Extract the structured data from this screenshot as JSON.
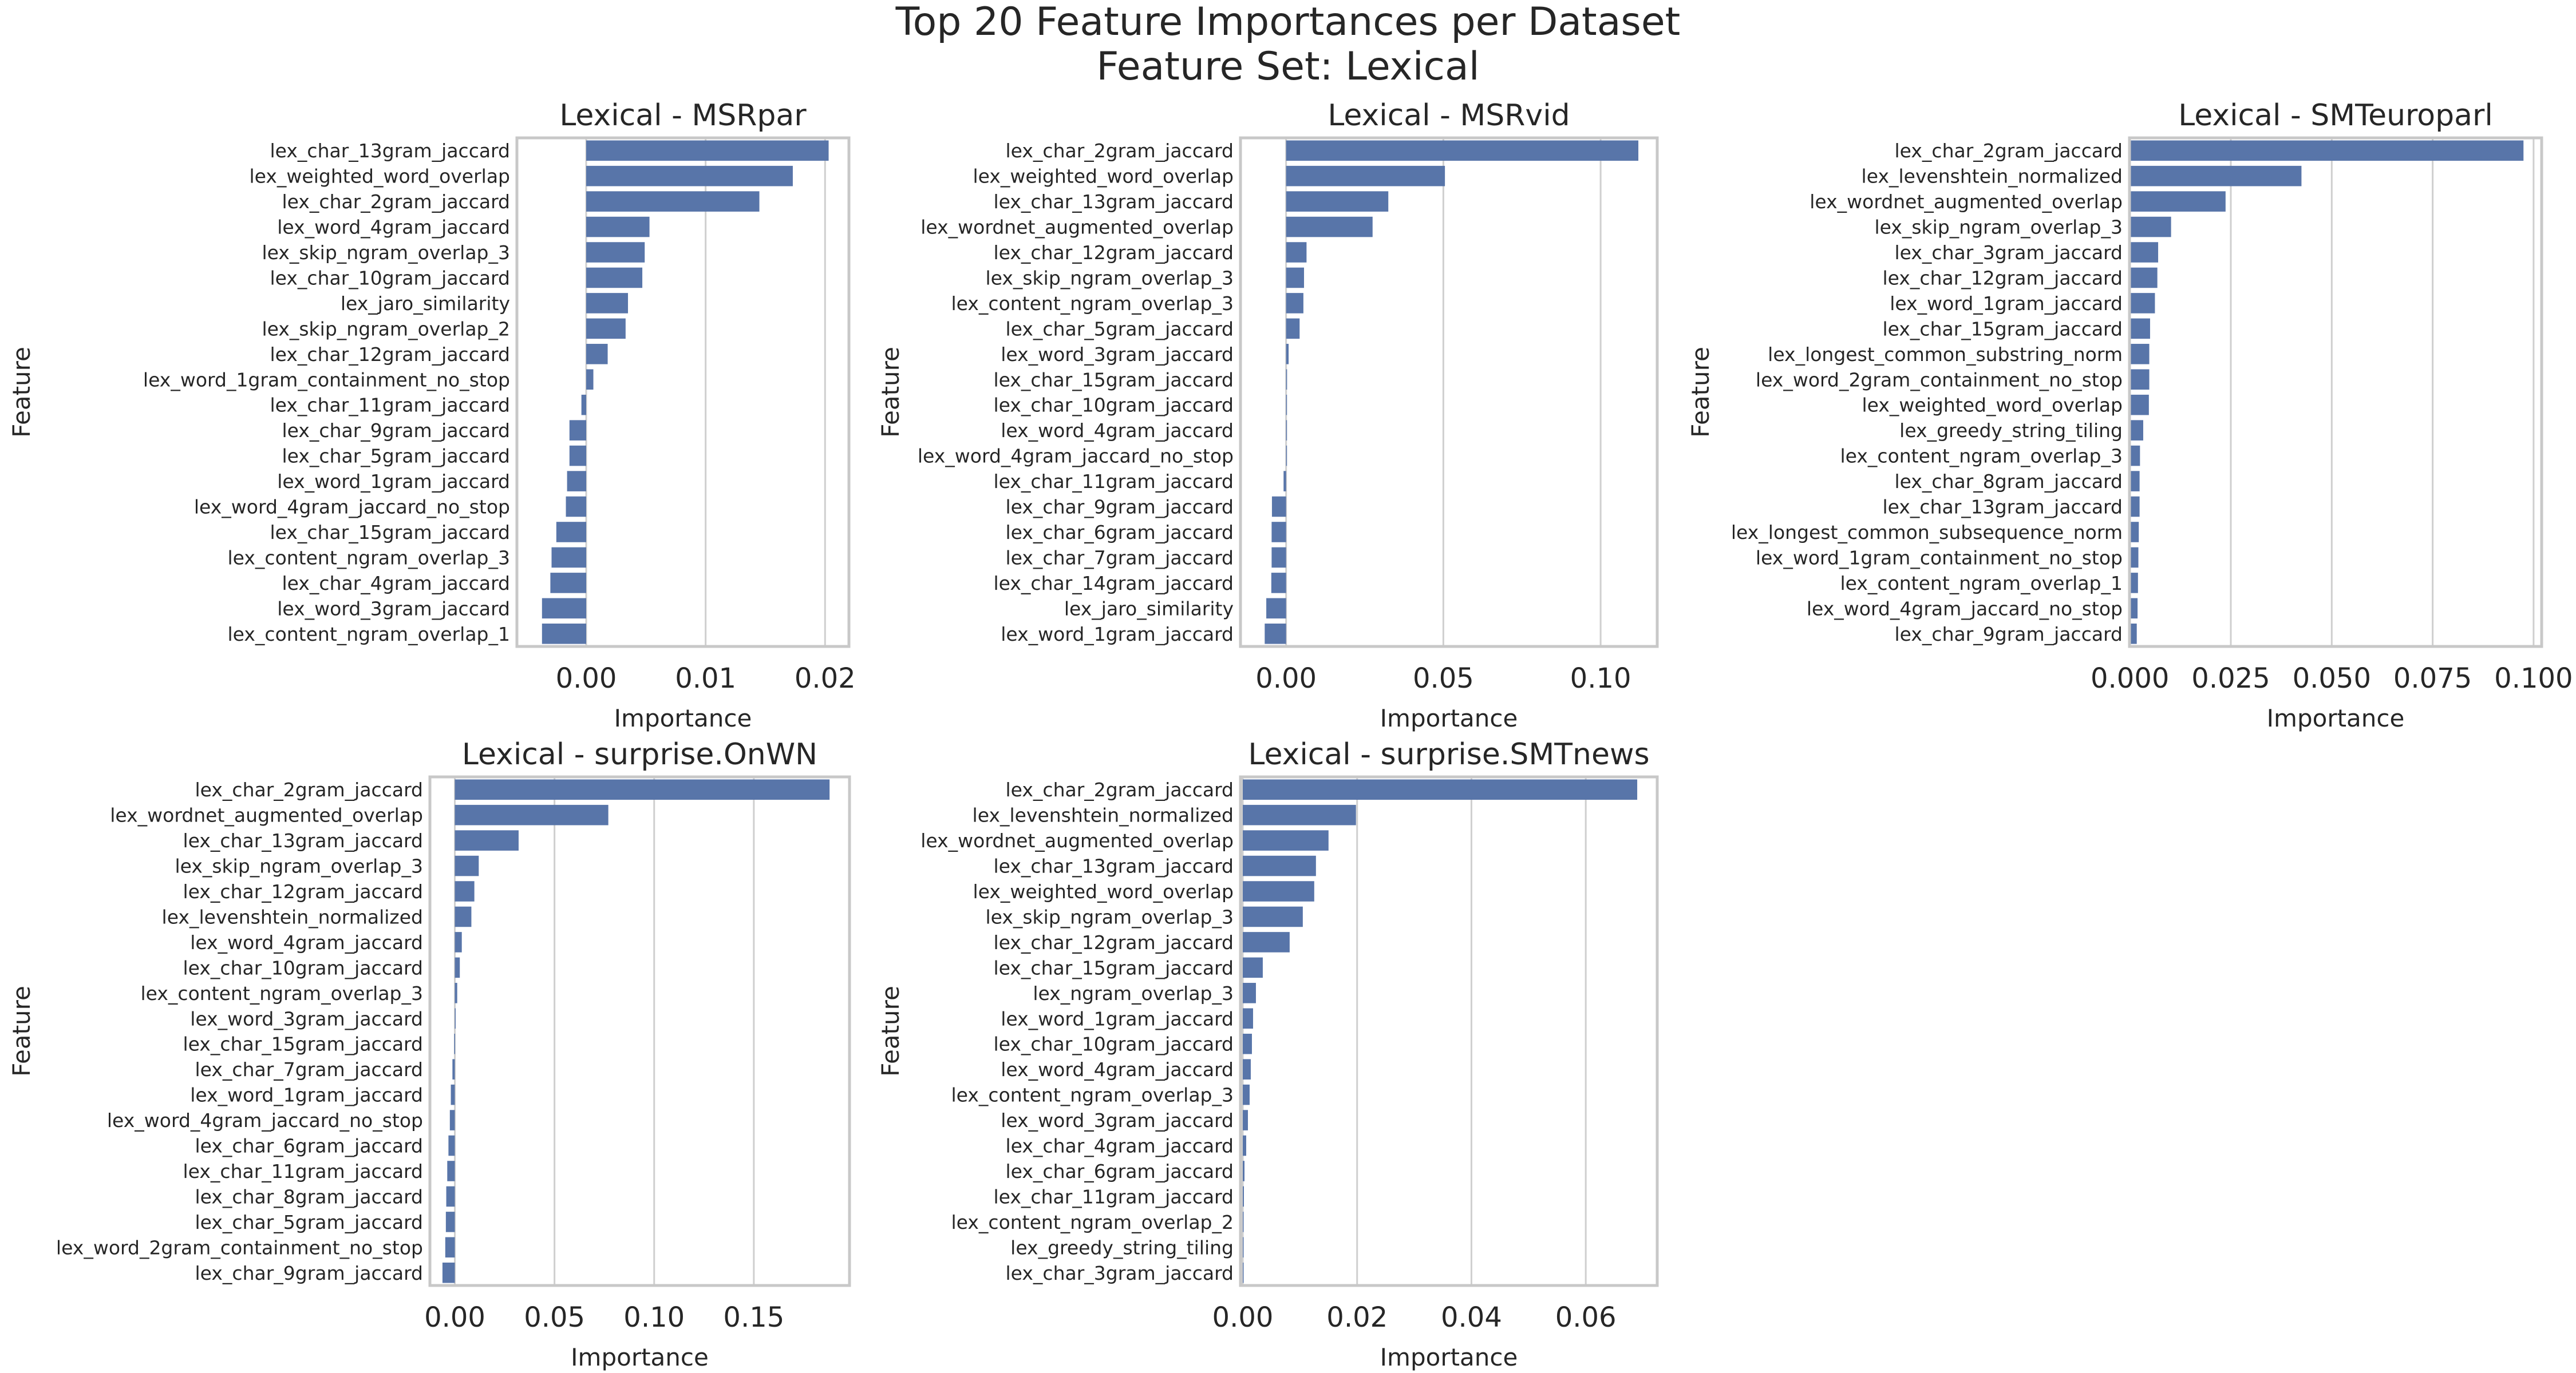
{
  "figure": {
    "title_line1": "Top 20 Feature Importances per Dataset",
    "title_line2": "Feature Set: Lexical"
  },
  "style": {
    "bar_color": "#5875a9",
    "grid_color": "#cfcfcf",
    "axis_color": "#c8c8c8",
    "background": "#ffffff"
  },
  "chart_data": [
    {
      "type": "bar",
      "orientation": "horizontal",
      "title": "Lexical - MSRpar",
      "xlabel": "Importance",
      "ylabel": "Feature",
      "xlim": [
        -0.0058,
        0.022
      ],
      "xticks": [
        0.0,
        0.01,
        0.02
      ],
      "xtick_labels": [
        "0.00",
        "0.01",
        "0.02"
      ],
      "grid": true,
      "categories": [
        "lex_char_13gram_jaccard",
        "lex_weighted_word_overlap",
        "lex_char_2gram_jaccard",
        "lex_word_4gram_jaccard",
        "lex_skip_ngram_overlap_3",
        "lex_char_10gram_jaccard",
        "lex_jaro_similarity",
        "lex_skip_ngram_overlap_2",
        "lex_char_12gram_jaccard",
        "lex_word_1gram_containment_no_stop",
        "lex_char_11gram_jaccard",
        "lex_char_9gram_jaccard",
        "lex_char_5gram_jaccard",
        "lex_word_1gram_jaccard",
        "lex_word_4gram_jaccard_no_stop",
        "lex_char_15gram_jaccard",
        "lex_content_ngram_overlap_3",
        "lex_char_4gram_jaccard",
        "lex_word_3gram_jaccard",
        "lex_content_ngram_overlap_1"
      ],
      "values": [
        0.0203,
        0.0173,
        0.0145,
        0.0053,
        0.0049,
        0.0047,
        0.0035,
        0.0033,
        0.0018,
        0.0006,
        -0.0004,
        -0.0014,
        -0.0014,
        -0.0016,
        -0.0017,
        -0.0025,
        -0.0029,
        -0.003,
        -0.0037,
        -0.0037
      ]
    },
    {
      "type": "bar",
      "orientation": "horizontal",
      "title": "Lexical - MSRvid",
      "xlabel": "Importance",
      "ylabel": "Feature",
      "xlim": [
        -0.0145,
        0.118
      ],
      "xticks": [
        0.0,
        0.05,
        0.1
      ],
      "xtick_labels": [
        "0.00",
        "0.05",
        "0.10"
      ],
      "grid": true,
      "categories": [
        "lex_char_2gram_jaccard",
        "lex_weighted_word_overlap",
        "lex_char_13gram_jaccard",
        "lex_wordnet_augmented_overlap",
        "lex_char_12gram_jaccard",
        "lex_skip_ngram_overlap_3",
        "lex_content_ngram_overlap_3",
        "lex_char_5gram_jaccard",
        "lex_word_3gram_jaccard",
        "lex_char_15gram_jaccard",
        "lex_char_10gram_jaccard",
        "lex_word_4gram_jaccard",
        "lex_word_4gram_jaccard_no_stop",
        "lex_char_11gram_jaccard",
        "lex_char_9gram_jaccard",
        "lex_char_6gram_jaccard",
        "lex_char_7gram_jaccard",
        "lex_char_14gram_jaccard",
        "lex_jaro_similarity",
        "lex_word_1gram_jaccard"
      ],
      "values": [
        0.112,
        0.0505,
        0.0325,
        0.0275,
        0.0065,
        0.0057,
        0.0055,
        0.0043,
        0.0008,
        0.0003,
        0.0002,
        0.0001,
        0.0001,
        -0.0008,
        -0.0045,
        -0.0046,
        -0.0046,
        -0.0047,
        -0.0063,
        -0.0068
      ]
    },
    {
      "type": "bar",
      "orientation": "horizontal",
      "title": "Lexical - SMTeuroparl",
      "xlabel": "Importance",
      "ylabel": "Feature",
      "xlim": [
        -0.0001,
        0.102
      ],
      "xticks": [
        0.0,
        0.025,
        0.05,
        0.075,
        0.1
      ],
      "xtick_labels": [
        "0.000",
        "0.025",
        "0.050",
        "0.075",
        "0.100"
      ],
      "grid": true,
      "categories": [
        "lex_char_2gram_jaccard",
        "lex_levenshtein_normalized",
        "lex_wordnet_augmented_overlap",
        "lex_skip_ngram_overlap_3",
        "lex_char_3gram_jaccard",
        "lex_char_12gram_jaccard",
        "lex_word_1gram_jaccard",
        "lex_char_15gram_jaccard",
        "lex_longest_common_substring_norm",
        "lex_word_2gram_containment_no_stop",
        "lex_weighted_word_overlap",
        "lex_greedy_string_tiling",
        "lex_content_ngram_overlap_3",
        "lex_char_8gram_jaccard",
        "lex_char_13gram_jaccard",
        "lex_longest_common_subsequence_norm",
        "lex_word_1gram_containment_no_stop",
        "lex_content_ngram_overlap_1",
        "lex_word_4gram_jaccard_no_stop",
        "lex_char_9gram_jaccard"
      ],
      "values": [
        0.0975,
        0.0425,
        0.0237,
        0.0102,
        0.007,
        0.0068,
        0.0062,
        0.005,
        0.0048,
        0.0048,
        0.0047,
        0.0033,
        0.0025,
        0.0024,
        0.0024,
        0.0022,
        0.0021,
        0.002,
        0.0019,
        0.0017
      ]
    },
    {
      "type": "bar",
      "orientation": "horizontal",
      "title": "Lexical - surprise.OnWN",
      "xlabel": "Importance",
      "ylabel": "Feature",
      "xlim": [
        -0.0125,
        0.198
      ],
      "xticks": [
        0.0,
        0.05,
        0.1,
        0.15
      ],
      "xtick_labels": [
        "0.00",
        "0.05",
        "0.10",
        "0.15"
      ],
      "grid": true,
      "categories": [
        "lex_char_2gram_jaccard",
        "lex_wordnet_augmented_overlap",
        "lex_char_13gram_jaccard",
        "lex_skip_ngram_overlap_3",
        "lex_char_12gram_jaccard",
        "lex_levenshtein_normalized",
        "lex_word_4gram_jaccard",
        "lex_char_10gram_jaccard",
        "lex_content_ngram_overlap_3",
        "lex_word_3gram_jaccard",
        "lex_char_15gram_jaccard",
        "lex_char_7gram_jaccard",
        "lex_word_1gram_jaccard",
        "lex_word_4gram_jaccard_no_stop",
        "lex_char_6gram_jaccard",
        "lex_char_11gram_jaccard",
        "lex_char_8gram_jaccard",
        "lex_char_5gram_jaccard",
        "lex_word_2gram_containment_no_stop",
        "lex_char_9gram_jaccard"
      ],
      "values": [
        0.188,
        0.077,
        0.032,
        0.012,
        0.0098,
        0.0083,
        0.0035,
        0.0025,
        0.0012,
        0.0002,
        -0.0003,
        -0.0012,
        -0.002,
        -0.0025,
        -0.0032,
        -0.0038,
        -0.0043,
        -0.0045,
        -0.0048,
        -0.0062
      ]
    },
    {
      "type": "bar",
      "orientation": "horizontal",
      "title": "Lexical - surprise.SMTnews",
      "xlabel": "Importance",
      "ylabel": "Feature",
      "xlim": [
        -0.0004,
        0.0725
      ],
      "xticks": [
        0.0,
        0.02,
        0.04,
        0.06
      ],
      "xtick_labels": [
        "0.00",
        "0.02",
        "0.04",
        "0.06"
      ],
      "grid": true,
      "categories": [
        "lex_char_2gram_jaccard",
        "lex_levenshtein_normalized",
        "lex_wordnet_augmented_overlap",
        "lex_char_13gram_jaccard",
        "lex_weighted_word_overlap",
        "lex_skip_ngram_overlap_3",
        "lex_char_12gram_jaccard",
        "lex_char_15gram_jaccard",
        "lex_ngram_overlap_3",
        "lex_word_1gram_jaccard",
        "lex_char_10gram_jaccard",
        "lex_word_4gram_jaccard",
        "lex_content_ngram_overlap_3",
        "lex_word_3gram_jaccard",
        "lex_char_4gram_jaccard",
        "lex_char_6gram_jaccard",
        "lex_char_11gram_jaccard",
        "lex_content_ngram_overlap_2",
        "lex_greedy_string_tiling",
        "lex_char_3gram_jaccard"
      ],
      "values": [
        0.069,
        0.0198,
        0.015,
        0.0128,
        0.0125,
        0.0105,
        0.0082,
        0.0035,
        0.0023,
        0.0018,
        0.0016,
        0.0014,
        0.0012,
        0.0009,
        0.0006,
        0.0003,
        0.0002,
        0.0001,
        0.0001,
        0.0001
      ]
    }
  ]
}
